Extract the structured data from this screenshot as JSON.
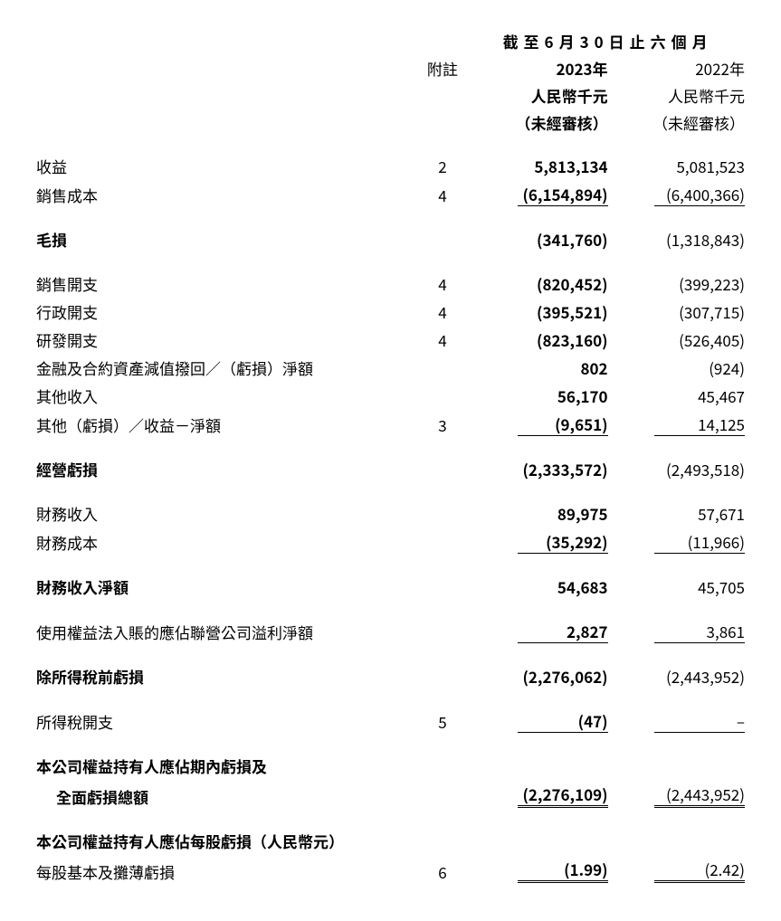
{
  "header": {
    "period_title": "截至6月30日止六個月",
    "note_col": "附註",
    "year_2023": "2023年",
    "year_2022": "2022年",
    "currency_2023": "人民幣千元",
    "currency_2022": "人民幣千元",
    "audit_2023": "（未經審核）",
    "audit_2022": "（未經審核）"
  },
  "rows": {
    "revenue": {
      "label": "收益",
      "note": "2",
      "v2023": "5,813,134",
      "v2022": "5,081,523"
    },
    "cost_of_sales": {
      "label": "銷售成本",
      "note": "4",
      "v2023": "(6,154,894)",
      "v2022": "(6,400,366)"
    },
    "gross_loss": {
      "label": "毛損",
      "note": "",
      "v2023": "(341,760)",
      "v2022": "(1,318,843)"
    },
    "selling_exp": {
      "label": "銷售開支",
      "note": "4",
      "v2023": "(820,452)",
      "v2022": "(399,223)"
    },
    "admin_exp": {
      "label": "行政開支",
      "note": "4",
      "v2023": "(395,521)",
      "v2022": "(307,715)"
    },
    "rd_exp": {
      "label": "研發開支",
      "note": "4",
      "v2023": "(823,160)",
      "v2022": "(526,405)"
    },
    "impairment": {
      "label": "金融及合約資產減值撥回／（虧損）淨額",
      "note": "",
      "v2023": "802",
      "v2022": "(924)"
    },
    "other_income": {
      "label": "其他收入",
      "note": "",
      "v2023": "56,170",
      "v2022": "45,467"
    },
    "other_gains": {
      "label": "其他（虧損）／收益－淨額",
      "note": "3",
      "v2023": "(9,651)",
      "v2022": "14,125"
    },
    "operating_loss": {
      "label": "經營虧損",
      "note": "",
      "v2023": "(2,333,572)",
      "v2022": "(2,493,518)"
    },
    "finance_income": {
      "label": "財務收入",
      "note": "",
      "v2023": "89,975",
      "v2022": "57,671"
    },
    "finance_cost": {
      "label": "財務成本",
      "note": "",
      "v2023": "(35,292)",
      "v2022": "(11,966)"
    },
    "net_finance": {
      "label": "財務收入淨額",
      "note": "",
      "v2023": "54,683",
      "v2022": "45,705"
    },
    "associate": {
      "label": "使用權益法入賬的應佔聯營公司溢利淨額",
      "note": "",
      "v2023": "2,827",
      "v2022": "3,861"
    },
    "loss_before_tax": {
      "label": "除所得稅前虧損",
      "note": "",
      "v2023": "(2,276,062)",
      "v2022": "(2,443,952)"
    },
    "income_tax": {
      "label": "所得稅開支",
      "note": "5",
      "v2023": "(47)",
      "v2022": "–"
    },
    "total_loss_l1": {
      "label": "本公司權益持有人應佔期內虧損及"
    },
    "total_loss_l2": {
      "label": "全面虧損總額",
      "note": "",
      "v2023": "(2,276,109)",
      "v2022": "(2,443,952)"
    },
    "eps_header": {
      "label": "本公司權益持有人應佔每股虧損（人民幣元）"
    },
    "eps": {
      "label": "每股基本及攤薄虧損",
      "note": "6",
      "v2023": "(1.99)",
      "v2022": "(2.42)"
    }
  }
}
